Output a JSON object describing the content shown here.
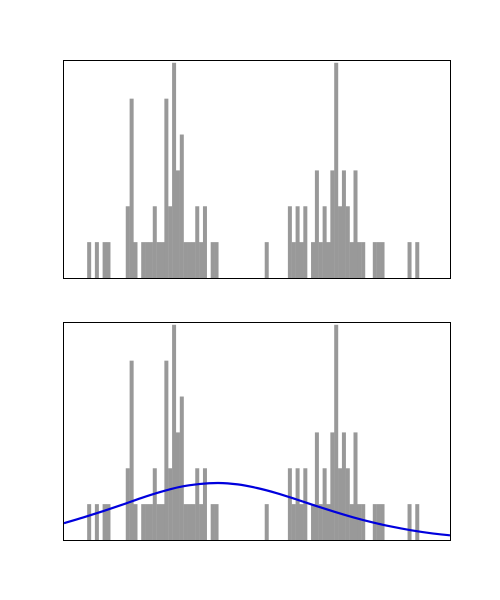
{
  "chart_data": [
    {
      "type": "bar",
      "xlim": [
        0,
        100
      ],
      "ylim": [
        0,
        6.05
      ],
      "grid": false,
      "bin_width": 1,
      "colors": {
        "bars": "#999999",
        "frame": "#000000"
      },
      "bars": [
        {
          "x": 6,
          "count": 1
        },
        {
          "x": 8,
          "count": 1
        },
        {
          "x": 10,
          "count": 1
        },
        {
          "x": 11,
          "count": 1
        },
        {
          "x": 16,
          "count": 2
        },
        {
          "x": 17,
          "count": 5
        },
        {
          "x": 18,
          "count": 1
        },
        {
          "x": 20,
          "count": 1
        },
        {
          "x": 21,
          "count": 1
        },
        {
          "x": 22,
          "count": 1
        },
        {
          "x": 23,
          "count": 2
        },
        {
          "x": 24,
          "count": 1
        },
        {
          "x": 25,
          "count": 1
        },
        {
          "x": 26,
          "count": 5
        },
        {
          "x": 27,
          "count": 2
        },
        {
          "x": 28,
          "count": 6
        },
        {
          "x": 29,
          "count": 3
        },
        {
          "x": 30,
          "count": 4
        },
        {
          "x": 31,
          "count": 1
        },
        {
          "x": 32,
          "count": 1
        },
        {
          "x": 33,
          "count": 1
        },
        {
          "x": 34,
          "count": 2
        },
        {
          "x": 35,
          "count": 1
        },
        {
          "x": 36,
          "count": 2
        },
        {
          "x": 38,
          "count": 1
        },
        {
          "x": 39,
          "count": 1
        },
        {
          "x": 52,
          "count": 1
        },
        {
          "x": 58,
          "count": 2
        },
        {
          "x": 59,
          "count": 1
        },
        {
          "x": 60,
          "count": 2
        },
        {
          "x": 61,
          "count": 1
        },
        {
          "x": 62,
          "count": 2
        },
        {
          "x": 64,
          "count": 1
        },
        {
          "x": 65,
          "count": 3
        },
        {
          "x": 66,
          "count": 1
        },
        {
          "x": 67,
          "count": 2
        },
        {
          "x": 68,
          "count": 1
        },
        {
          "x": 69,
          "count": 3
        },
        {
          "x": 70,
          "count": 6
        },
        {
          "x": 71,
          "count": 2
        },
        {
          "x": 72,
          "count": 3
        },
        {
          "x": 73,
          "count": 2
        },
        {
          "x": 74,
          "count": 1
        },
        {
          "x": 75,
          "count": 3
        },
        {
          "x": 76,
          "count": 1
        },
        {
          "x": 77,
          "count": 1
        },
        {
          "x": 80,
          "count": 1
        },
        {
          "x": 81,
          "count": 1
        },
        {
          "x": 82,
          "count": 1
        },
        {
          "x": 89,
          "count": 1
        },
        {
          "x": 91,
          "count": 1
        }
      ]
    },
    {
      "type": "bar",
      "xlim": [
        0,
        100
      ],
      "ylim": [
        0,
        6.05
      ],
      "grid": false,
      "bin_width": 1,
      "colors": {
        "bars": "#999999",
        "frame": "#000000",
        "curve": "#0000dd"
      },
      "bars": [
        {
          "x": 6,
          "count": 1
        },
        {
          "x": 8,
          "count": 1
        },
        {
          "x": 10,
          "count": 1
        },
        {
          "x": 11,
          "count": 1
        },
        {
          "x": 16,
          "count": 2
        },
        {
          "x": 17,
          "count": 5
        },
        {
          "x": 18,
          "count": 1
        },
        {
          "x": 20,
          "count": 1
        },
        {
          "x": 21,
          "count": 1
        },
        {
          "x": 22,
          "count": 1
        },
        {
          "x": 23,
          "count": 2
        },
        {
          "x": 24,
          "count": 1
        },
        {
          "x": 25,
          "count": 1
        },
        {
          "x": 26,
          "count": 5
        },
        {
          "x": 27,
          "count": 2
        },
        {
          "x": 28,
          "count": 6
        },
        {
          "x": 29,
          "count": 3
        },
        {
          "x": 30,
          "count": 4
        },
        {
          "x": 31,
          "count": 1
        },
        {
          "x": 32,
          "count": 1
        },
        {
          "x": 33,
          "count": 1
        },
        {
          "x": 34,
          "count": 2
        },
        {
          "x": 35,
          "count": 1
        },
        {
          "x": 36,
          "count": 2
        },
        {
          "x": 38,
          "count": 1
        },
        {
          "x": 39,
          "count": 1
        },
        {
          "x": 52,
          "count": 1
        },
        {
          "x": 58,
          "count": 2
        },
        {
          "x": 59,
          "count": 1
        },
        {
          "x": 60,
          "count": 2
        },
        {
          "x": 61,
          "count": 1
        },
        {
          "x": 62,
          "count": 2
        },
        {
          "x": 64,
          "count": 1
        },
        {
          "x": 65,
          "count": 3
        },
        {
          "x": 66,
          "count": 1
        },
        {
          "x": 67,
          "count": 2
        },
        {
          "x": 68,
          "count": 1
        },
        {
          "x": 69,
          "count": 3
        },
        {
          "x": 70,
          "count": 6
        },
        {
          "x": 71,
          "count": 2
        },
        {
          "x": 72,
          "count": 3
        },
        {
          "x": 73,
          "count": 2
        },
        {
          "x": 74,
          "count": 1
        },
        {
          "x": 75,
          "count": 3
        },
        {
          "x": 76,
          "count": 1
        },
        {
          "x": 77,
          "count": 1
        },
        {
          "x": 80,
          "count": 1
        },
        {
          "x": 81,
          "count": 1
        },
        {
          "x": 82,
          "count": 1
        },
        {
          "x": 89,
          "count": 1
        },
        {
          "x": 91,
          "count": 1
        }
      ],
      "curve": {
        "type": "line",
        "x": [
          0,
          5,
          10,
          15,
          20,
          25,
          30,
          35,
          40,
          45,
          50,
          55,
          60,
          65,
          70,
          75,
          80,
          85,
          90,
          95,
          100
        ],
        "y": [
          0.47,
          0.63,
          0.8,
          0.98,
          1.17,
          1.34,
          1.48,
          1.56,
          1.59,
          1.55,
          1.45,
          1.31,
          1.14,
          0.96,
          0.79,
          0.63,
          0.49,
          0.37,
          0.27,
          0.19,
          0.13
        ]
      }
    }
  ]
}
